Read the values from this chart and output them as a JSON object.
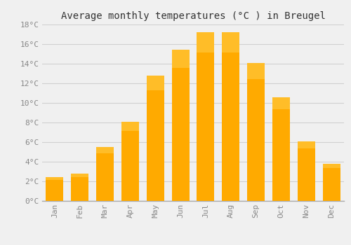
{
  "title": "Average monthly temperatures (°C ) in Breugel",
  "months": [
    "Jan",
    "Feb",
    "Mar",
    "Apr",
    "May",
    "Jun",
    "Jul",
    "Aug",
    "Sep",
    "Oct",
    "Nov",
    "Dec"
  ],
  "temperatures": [
    2.4,
    2.8,
    5.5,
    8.1,
    12.8,
    15.4,
    17.2,
    17.2,
    14.1,
    10.6,
    6.1,
    3.8
  ],
  "bar_color": "#FFAA00",
  "bar_color_light": "#FFD050",
  "ylim": [
    0,
    18
  ],
  "yticks": [
    0,
    2,
    4,
    6,
    8,
    10,
    12,
    14,
    16,
    18
  ],
  "ytick_labels": [
    "0°C",
    "2°C",
    "4°C",
    "6°C",
    "8°C",
    "10°C",
    "12°C",
    "14°C",
    "16°C",
    "18°C"
  ],
  "background_color": "#f0f0f0",
  "grid_color": "#d0d0d0",
  "title_fontsize": 10,
  "tick_fontsize": 8,
  "tick_color": "#888888",
  "bar_width": 0.7
}
